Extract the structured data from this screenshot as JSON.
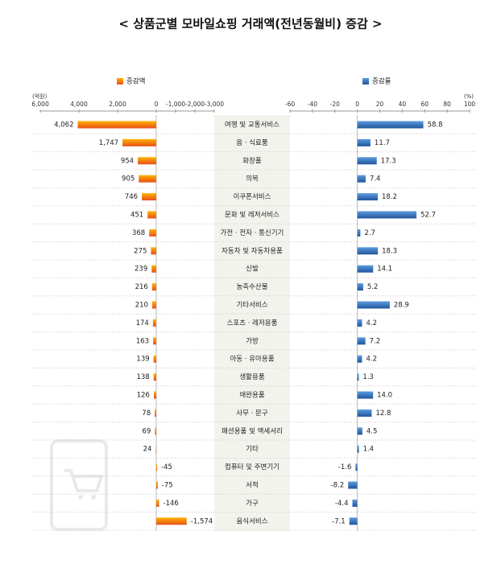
{
  "chart_data": {
    "type": "butterfly-bar",
    "title": "< 상품군별 모바일쇼핑 거래액(전년동월비) 증감 >",
    "categories": [
      "여행 및 교통서비스",
      "음 · 식료품",
      "화장품",
      "의복",
      "이쿠폰서비스",
      "문화 및 레저서비스",
      "가전 · 전자 · 통신기기",
      "자동차 및 자동차용품",
      "신발",
      "농축수산물",
      "기타서비스",
      "스포츠 · 레저용품",
      "가방",
      "아동 · 유아용품",
      "생활용품",
      "애완용품",
      "사무 · 문구",
      "패션용품 및 액세서리",
      "기타",
      "컴퓨터 및 주변기기",
      "서적",
      "가구",
      "음식서비스"
    ],
    "series": [
      {
        "name": "증감액",
        "unit": "(억원)",
        "color": "#ef7d00",
        "values": [
          4062,
          1747,
          954,
          905,
          746,
          451,
          368,
          275,
          239,
          216,
          210,
          174,
          163,
          139,
          138,
          126,
          78,
          69,
          24,
          -45,
          -75,
          -146,
          -1574
        ],
        "value_labels": [
          "4,062",
          "1,747",
          "954",
          "905",
          "746",
          "451",
          "368",
          "275",
          "239",
          "216",
          "210",
          "174",
          "163",
          "139",
          "138",
          "126",
          "78",
          "69",
          "24",
          "-45",
          "-75",
          "-146",
          "-1,574"
        ],
        "xlim": [
          6000,
          -3000
        ],
        "xticks": [
          {
            "value": 6000,
            "label": "6,000"
          },
          {
            "value": 4000,
            "label": "4,000"
          },
          {
            "value": 2000,
            "label": "2,000"
          },
          0,
          {
            "value": -1000,
            "label": "-1,000"
          },
          {
            "value": -2000,
            "label": "-2,000"
          },
          {
            "value": -3000,
            "label": "-3,000"
          }
        ]
      },
      {
        "name": "증감률",
        "unit": "(%)",
        "color": "#2f6db5",
        "values": [
          58.8,
          11.7,
          17.3,
          7.4,
          18.2,
          52.7,
          2.7,
          18.3,
          14.1,
          5.2,
          28.9,
          4.2,
          7.2,
          4.2,
          1.3,
          14.0,
          12.8,
          4.5,
          1.4,
          -1.6,
          -8.2,
          -4.4,
          -7.1
        ],
        "value_labels": [
          "58.8",
          "11.7",
          "17.3",
          "7.4",
          "18.2",
          "52.7",
          "2.7",
          "18.3",
          "14.1",
          "5.2",
          "28.9",
          "4.2",
          "7.2",
          "4.2",
          "1.3",
          "14.0",
          "12.8",
          "4.5",
          "1.4",
          "-1.6",
          "-8.2",
          "-4.4",
          "-7.1"
        ],
        "xlim": [
          -60,
          100
        ],
        "xticks": [
          -60,
          -40,
          -20,
          0,
          20,
          40,
          60,
          80,
          100
        ]
      }
    ]
  }
}
